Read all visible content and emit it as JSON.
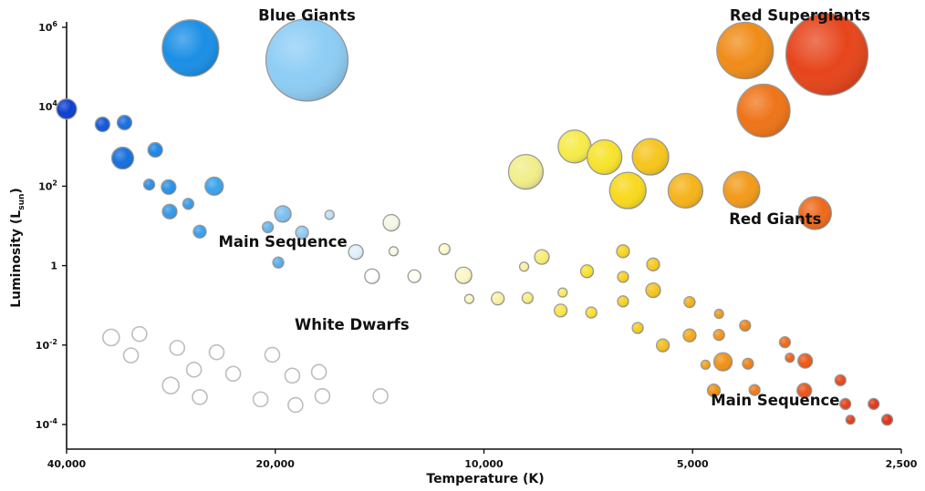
{
  "chart_data": {
    "type": "scatter",
    "xlabel": "Temperature (K)",
    "ylabel": {
      "base": "Luminosity (L",
      "sub": "sun",
      "tail": ")"
    },
    "x_scale": "log",
    "x_reversed": true,
    "xlim": [
      40000,
      2500
    ],
    "y_scale": "log",
    "ylim": [
      0.0001,
      1000000
    ],
    "grid": false,
    "x_ticks": [
      {
        "value": 40000,
        "label": "40,000"
      },
      {
        "value": 20000,
        "label": "20,000"
      },
      {
        "value": 10000,
        "label": "10,000"
      },
      {
        "value": 5000,
        "label": "5,000"
      },
      {
        "value": 2500,
        "label": "2,500"
      }
    ],
    "y_ticks": [
      {
        "value": 1000000,
        "base": "10",
        "exp": "6"
      },
      {
        "value": 10000,
        "base": "10",
        "exp": "4"
      },
      {
        "value": 100,
        "base": "10",
        "exp": "2"
      },
      {
        "value": 1,
        "base": "1",
        "exp": ""
      },
      {
        "value": 0.01,
        "base": "10",
        "exp": "-2"
      },
      {
        "value": 0.0001,
        "base": "10",
        "exp": "-4"
      }
    ],
    "annotations": [
      {
        "text": "Blue Giants",
        "x": 18000,
        "y": 1500000
      },
      {
        "text": "Red Supergiants",
        "x": 3500,
        "y": 1500000
      },
      {
        "text": "Red Giants",
        "x": 3800,
        "y": 11
      },
      {
        "text": "Main Sequence",
        "x": 19500,
        "y": 3
      },
      {
        "text": "White Dwarfs",
        "x": 15500,
        "y": 0.024
      },
      {
        "text": "Main Sequence",
        "x": 3800,
        "y": 0.0003
      }
    ],
    "series": [
      {
        "group": "blue-giants",
        "points": [
          {
            "x": 26500,
            "y": 300000,
            "r": 31,
            "color": "#1a8fe6"
          },
          {
            "x": 18000,
            "y": 150000,
            "r": 45,
            "color": "#8ecdf5"
          }
        ]
      },
      {
        "group": "red-supergiants",
        "points": [
          {
            "x": 4200,
            "y": 260000,
            "r": 31,
            "color": "#f08c18"
          },
          {
            "x": 3200,
            "y": 210000,
            "r": 45,
            "color": "#e6451b"
          },
          {
            "x": 3950,
            "y": 8000,
            "r": 29,
            "color": "#ee7418"
          }
        ]
      },
      {
        "group": "red-giants",
        "points": [
          {
            "x": 8700,
            "y": 230,
            "r": 19,
            "color": "#f1ee8b"
          },
          {
            "x": 7400,
            "y": 1000,
            "r": 18,
            "color": "#f6eb49"
          },
          {
            "x": 6700,
            "y": 540,
            "r": 19,
            "color": "#f7e32c"
          },
          {
            "x": 5750,
            "y": 550,
            "r": 20,
            "color": "#f6c51e"
          },
          {
            "x": 6200,
            "y": 78,
            "r": 20,
            "color": "#f8d91e"
          },
          {
            "x": 5120,
            "y": 77,
            "r": 19,
            "color": "#f5b41b"
          },
          {
            "x": 4250,
            "y": 82,
            "r": 20,
            "color": "#f29a1a"
          },
          {
            "x": 3330,
            "y": 21,
            "r": 18,
            "color": "#ee6a1b"
          }
        ]
      },
      {
        "group": "main-sequence",
        "points": [
          {
            "x": 40000,
            "y": 8800,
            "r": 11,
            "color": "#0c3fd0"
          },
          {
            "x": 35500,
            "y": 3600,
            "r": 8,
            "color": "#1157d8"
          },
          {
            "x": 33000,
            "y": 4000,
            "r": 8,
            "color": "#1a6ee0"
          },
          {
            "x": 33200,
            "y": 510,
            "r": 12,
            "color": "#1670dc"
          },
          {
            "x": 29800,
            "y": 820,
            "r": 8,
            "color": "#1f86e4"
          },
          {
            "x": 30400,
            "y": 110,
            "r": 6,
            "color": "#2a8fe6"
          },
          {
            "x": 28500,
            "y": 95,
            "r": 8,
            "color": "#2a93e6"
          },
          {
            "x": 28400,
            "y": 23,
            "r": 8,
            "color": "#3799e6"
          },
          {
            "x": 26700,
            "y": 36,
            "r": 6,
            "color": "#3a9be6"
          },
          {
            "x": 25700,
            "y": 7.2,
            "r": 7,
            "color": "#3ca0e8"
          },
          {
            "x": 24500,
            "y": 100,
            "r": 10,
            "color": "#3ba3ec"
          },
          {
            "x": 20500,
            "y": 9.3,
            "r": 6,
            "color": "#64b5ec"
          },
          {
            "x": 19500,
            "y": 20,
            "r": 9,
            "color": "#7cc0ee"
          },
          {
            "x": 19800,
            "y": 1.2,
            "r": 6,
            "color": "#5aaee8"
          },
          {
            "x": 18300,
            "y": 6.8,
            "r": 7,
            "color": "#92cbf0"
          },
          {
            "x": 16700,
            "y": 19,
            "r": 5,
            "color": "#bfe0f4"
          },
          {
            "x": 15300,
            "y": 2.2,
            "r": 8,
            "color": "#dff0fa"
          },
          {
            "x": 13600,
            "y": 12,
            "r": 9,
            "color": "#f7f7e6"
          },
          {
            "x": 13500,
            "y": 2.3,
            "r": 5,
            "color": "#f8f8e6"
          },
          {
            "x": 14500,
            "y": 0.54,
            "r": 8,
            "color": "#ffffff"
          },
          {
            "x": 12600,
            "y": 0.54,
            "r": 7,
            "color": "#fffff3"
          },
          {
            "x": 11400,
            "y": 2.6,
            "r": 6,
            "color": "#fdf9c6"
          },
          {
            "x": 10700,
            "y": 0.57,
            "r": 9,
            "color": "#fcf7c4"
          },
          {
            "x": 10500,
            "y": 0.145,
            "r": 5,
            "color": "#fbf6c0"
          },
          {
            "x": 9550,
            "y": 0.148,
            "r": 7,
            "color": "#f9f2a4"
          },
          {
            "x": 8750,
            "y": 0.94,
            "r": 5,
            "color": "#fbf0a0"
          },
          {
            "x": 8250,
            "y": 1.65,
            "r": 8,
            "color": "#f8ec72"
          },
          {
            "x": 8650,
            "y": 0.153,
            "r": 6,
            "color": "#f7ed80"
          },
          {
            "x": 7700,
            "y": 0.21,
            "r": 5,
            "color": "#f8ea58"
          },
          {
            "x": 7750,
            "y": 0.074,
            "r": 7,
            "color": "#f9e64a"
          },
          {
            "x": 7100,
            "y": 0.72,
            "r": 7,
            "color": "#f8e22e"
          },
          {
            "x": 7000,
            "y": 0.066,
            "r": 6,
            "color": "#f9e02e"
          },
          {
            "x": 6300,
            "y": 2.3,
            "r": 7,
            "color": "#f6d521"
          },
          {
            "x": 6300,
            "y": 0.52,
            "r": 6,
            "color": "#f6d21e"
          },
          {
            "x": 6300,
            "y": 0.126,
            "r": 6,
            "color": "#f6d01e"
          },
          {
            "x": 6000,
            "y": 0.027,
            "r": 6,
            "color": "#f5cd1e"
          },
          {
            "x": 5700,
            "y": 1.07,
            "r": 7,
            "color": "#f5c91e"
          },
          {
            "x": 5700,
            "y": 0.24,
            "r": 8,
            "color": "#f5c51c"
          },
          {
            "x": 5520,
            "y": 0.0098,
            "r": 7,
            "color": "#f4bd1c"
          },
          {
            "x": 5050,
            "y": 0.121,
            "r": 6,
            "color": "#f3b01a"
          },
          {
            "x": 5050,
            "y": 0.0175,
            "r": 7,
            "color": "#f3aa1a"
          },
          {
            "x": 4790,
            "y": 0.0032,
            "r": 5,
            "color": "#f1a21a"
          },
          {
            "x": 4580,
            "y": 0.061,
            "r": 5,
            "color": "#f09a1a"
          },
          {
            "x": 4580,
            "y": 0.018,
            "r": 6,
            "color": "#f0961a"
          },
          {
            "x": 4520,
            "y": 0.0038,
            "r": 10,
            "color": "#f09218"
          },
          {
            "x": 4660,
            "y": 0.00072,
            "r": 7,
            "color": "#ef9018"
          },
          {
            "x": 4200,
            "y": 0.031,
            "r": 6,
            "color": "#ef8418"
          },
          {
            "x": 4160,
            "y": 0.0034,
            "r": 6,
            "color": "#ee8018"
          },
          {
            "x": 4070,
            "y": 0.00074,
            "r": 6,
            "color": "#ee7c18"
          },
          {
            "x": 3680,
            "y": 0.0118,
            "r": 6,
            "color": "#ec6a1a"
          },
          {
            "x": 3620,
            "y": 0.0048,
            "r": 5,
            "color": "#ec621a"
          },
          {
            "x": 3440,
            "y": 0.004,
            "r": 8,
            "color": "#ea5a1a"
          },
          {
            "x": 3450,
            "y": 0.00072,
            "r": 8,
            "color": "#ea551a"
          },
          {
            "x": 3060,
            "y": 0.0013,
            "r": 6,
            "color": "#e6481a"
          },
          {
            "x": 3010,
            "y": 0.00033,
            "r": 6,
            "color": "#e44218"
          },
          {
            "x": 2960,
            "y": 0.000132,
            "r": 5,
            "color": "#e23c18"
          },
          {
            "x": 2740,
            "y": 0.00033,
            "r": 6,
            "color": "#e03818"
          },
          {
            "x": 2620,
            "y": 0.000132,
            "r": 6,
            "color": "#dd3318"
          }
        ]
      },
      {
        "group": "white-dwarfs",
        "points": [
          {
            "x": 34500,
            "y": 0.0155,
            "r": 9
          },
          {
            "x": 31400,
            "y": 0.019,
            "r": 8
          },
          {
            "x": 32300,
            "y": 0.0055,
            "r": 8
          },
          {
            "x": 27700,
            "y": 0.0085,
            "r": 8
          },
          {
            "x": 24300,
            "y": 0.0066,
            "r": 8
          },
          {
            "x": 20200,
            "y": 0.0057,
            "r": 8
          },
          {
            "x": 26200,
            "y": 0.0024,
            "r": 8
          },
          {
            "x": 23000,
            "y": 0.0019,
            "r": 8
          },
          {
            "x": 18900,
            "y": 0.0017,
            "r": 8
          },
          {
            "x": 17300,
            "y": 0.0021,
            "r": 8
          },
          {
            "x": 28300,
            "y": 0.00096,
            "r": 9
          },
          {
            "x": 25700,
            "y": 0.00049,
            "r": 8
          },
          {
            "x": 21000,
            "y": 0.00043,
            "r": 8
          },
          {
            "x": 18700,
            "y": 0.00031,
            "r": 8
          },
          {
            "x": 17100,
            "y": 0.00052,
            "r": 8
          },
          {
            "x": 14100,
            "y": 0.00052,
            "r": 8
          }
        ]
      }
    ]
  }
}
